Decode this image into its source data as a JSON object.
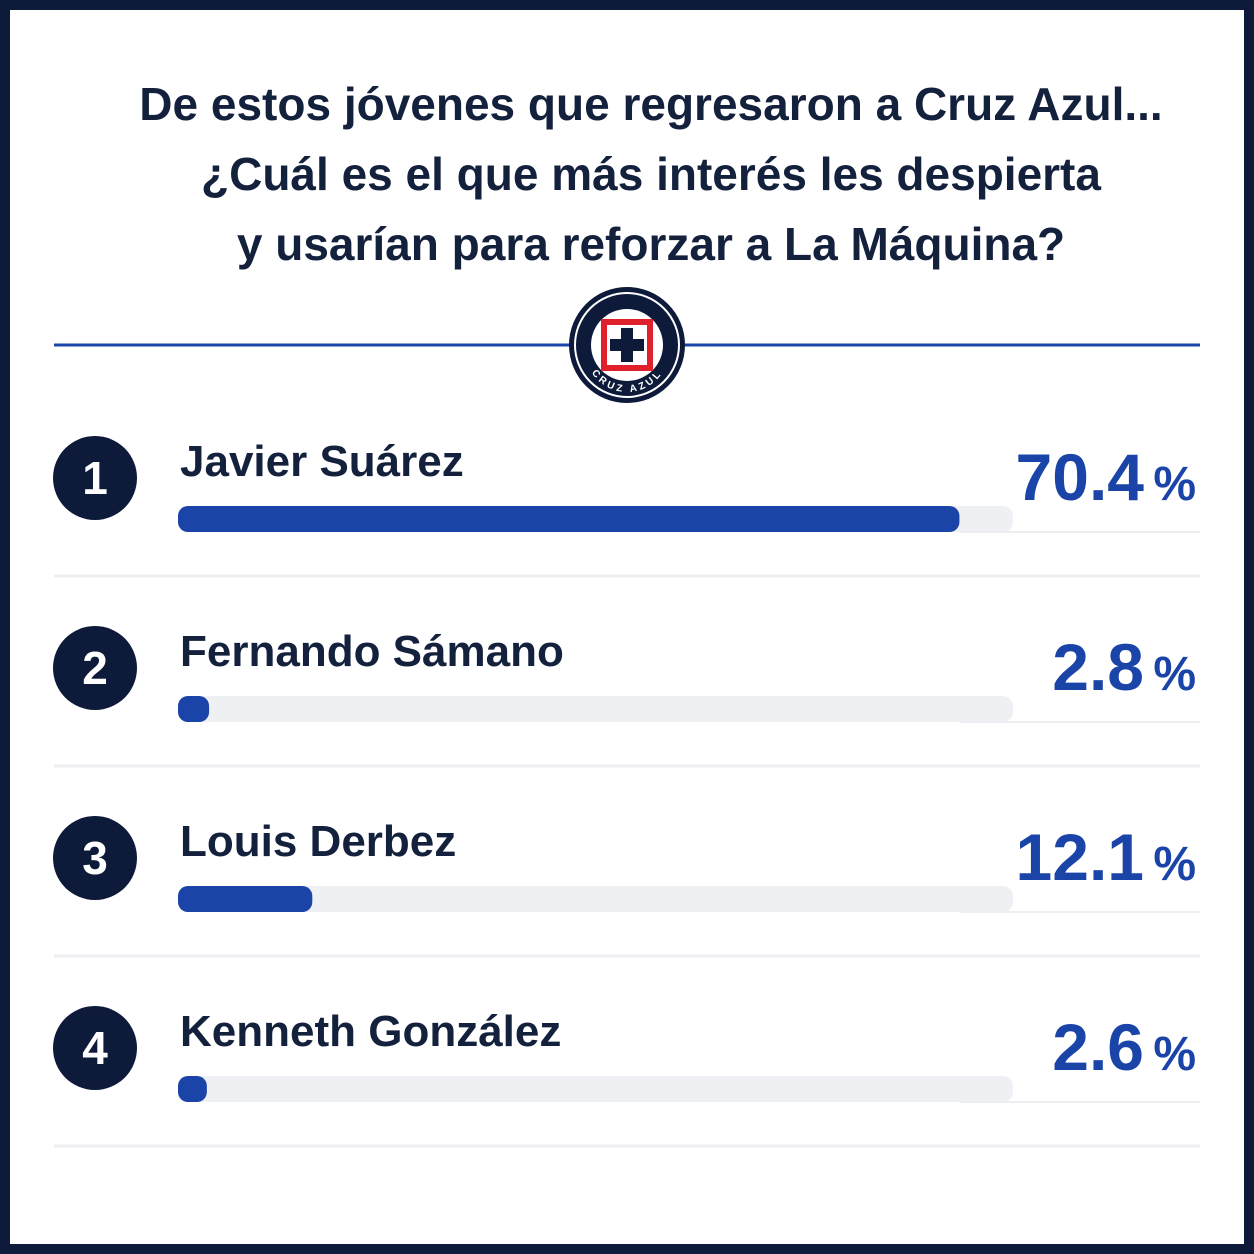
{
  "header": {
    "title_lines": [
      "De estos jóvenes que regresaron a Cruz Azul...",
      "¿Cuál es el que más interés les despierta",
      "y usarían para reforzar a La Máquina?"
    ],
    "logo_text": "CRUZ AZUL"
  },
  "poll": {
    "unit": "%",
    "options": [
      {
        "rank": 1,
        "name": "Javier Suárez",
        "value": 70.4
      },
      {
        "rank": 2,
        "name": "Fernando Sámano",
        "value": 2.8
      },
      {
        "rank": 3,
        "name": "Louis Derbez",
        "value": 12.1
      },
      {
        "rank": 4,
        "name": "Kenneth González",
        "value": 2.6
      }
    ]
  }
}
